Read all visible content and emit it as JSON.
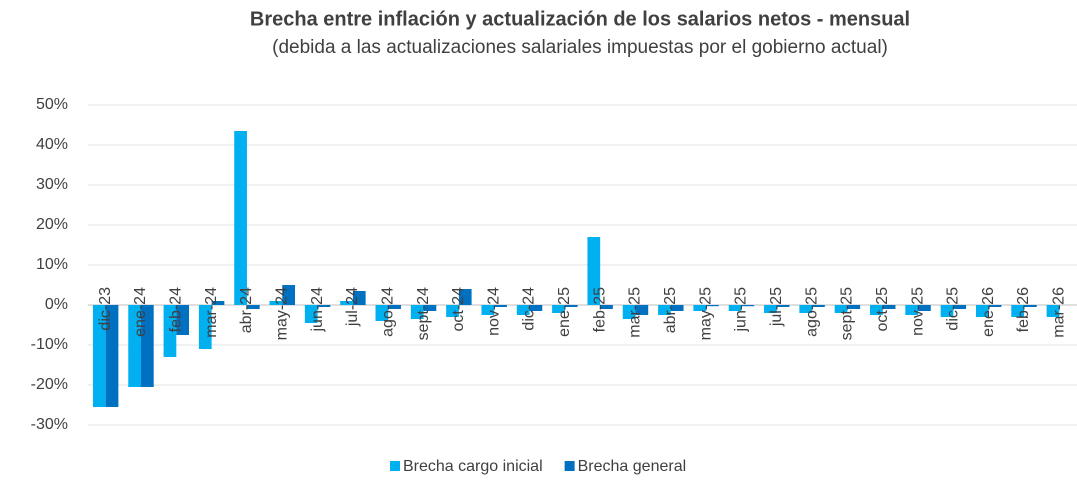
{
  "chart_data": {
    "type": "bar",
    "title": "Brecha entre inflación y actualización de los salarios netos - mensual",
    "subtitle": "(debida a las actualizaciones salariales impuestas por el gobierno actual)",
    "categories": [
      "dic-23",
      "ene-24",
      "feb-24",
      "mar-24",
      "abr-24",
      "may-24",
      "jun-24",
      "jul-24",
      "ago-24",
      "sept-24",
      "oct-24",
      "nov-24",
      "dic-24",
      "ene-25",
      "feb-25",
      "mar-25",
      "abr-25",
      "may-25",
      "jun-25",
      "jul-25",
      "ago-25",
      "sept-25",
      "oct-25",
      "nov-25",
      "dic-25",
      "ene-26",
      "feb-26",
      "mar-26"
    ],
    "series": [
      {
        "name": "Brecha cargo inicial",
        "color": "#00b0f0",
        "values": [
          -25.5,
          -20.5,
          -13,
          -11,
          43.5,
          1,
          -4.5,
          1,
          -4,
          -3.5,
          -3,
          -2.5,
          -2.5,
          -2,
          17,
          -3.5,
          -2.5,
          -1.5,
          -1.5,
          -2,
          -2,
          -2,
          -2.5,
          -2.5,
          -3,
          -3,
          -3,
          -3
        ]
      },
      {
        "name": "Brecha general",
        "color": "#0070c0",
        "values": [
          -25.5,
          -20.5,
          -7.5,
          1,
          -1,
          5,
          -0.5,
          3.5,
          -1,
          -1.5,
          4,
          -0.5,
          -1.5,
          -0.5,
          -1,
          -2.5,
          -1.5,
          -0.3,
          -0.3,
          -0.5,
          -0.5,
          -1,
          -1,
          -1.5,
          -1,
          -0.5,
          -0.5,
          null
        ]
      }
    ],
    "ylim": [
      -30,
      50
    ],
    "yticks": [
      {
        "value": -30,
        "label": "-30%"
      },
      {
        "value": -20,
        "label": "-20%"
      },
      {
        "value": -10,
        "label": "-10%"
      },
      {
        "value": 0,
        "label": "0%"
      },
      {
        "value": 10,
        "label": "10%"
      },
      {
        "value": 20,
        "label": "20%"
      },
      {
        "value": 30,
        "label": "30%"
      },
      {
        "value": 40,
        "label": "40%"
      },
      {
        "value": 50,
        "label": "50%"
      }
    ],
    "grid": true,
    "legend": "bottom"
  }
}
